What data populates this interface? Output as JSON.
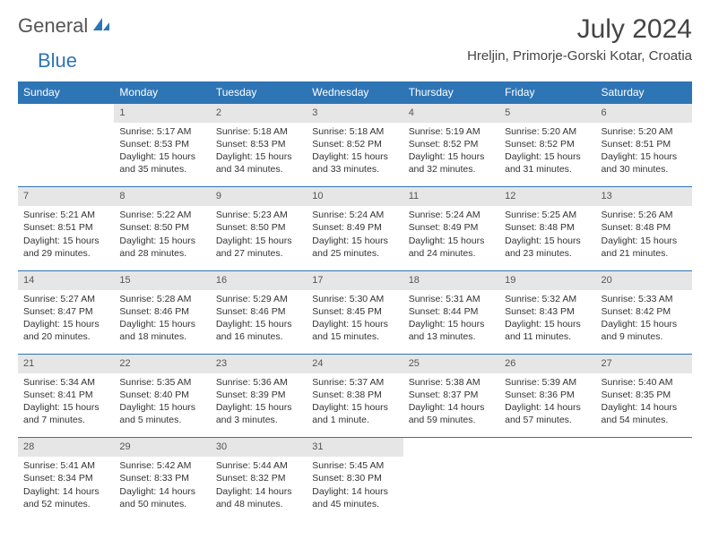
{
  "header": {
    "logo_general": "General",
    "logo_blue": "Blue",
    "month_title": "July 2024",
    "location": "Hreljin, Primorje-Gorski Kotar, Croatia"
  },
  "colors": {
    "header_bg": "#2e75b6",
    "header_text": "#ffffff",
    "daynum_bg": "#e6e6e6",
    "row_border": "#2e75b6",
    "body_text": "#333333",
    "logo_gray": "#555555",
    "logo_blue": "#2e75b6"
  },
  "weekdays": [
    "Sunday",
    "Monday",
    "Tuesday",
    "Wednesday",
    "Thursday",
    "Friday",
    "Saturday"
  ],
  "weeks": [
    {
      "nums": [
        "",
        "1",
        "2",
        "3",
        "4",
        "5",
        "6"
      ],
      "cells": [
        [],
        [
          "Sunrise: 5:17 AM",
          "Sunset: 8:53 PM",
          "Daylight: 15 hours",
          "and 35 minutes."
        ],
        [
          "Sunrise: 5:18 AM",
          "Sunset: 8:53 PM",
          "Daylight: 15 hours",
          "and 34 minutes."
        ],
        [
          "Sunrise: 5:18 AM",
          "Sunset: 8:52 PM",
          "Daylight: 15 hours",
          "and 33 minutes."
        ],
        [
          "Sunrise: 5:19 AM",
          "Sunset: 8:52 PM",
          "Daylight: 15 hours",
          "and 32 minutes."
        ],
        [
          "Sunrise: 5:20 AM",
          "Sunset: 8:52 PM",
          "Daylight: 15 hours",
          "and 31 minutes."
        ],
        [
          "Sunrise: 5:20 AM",
          "Sunset: 8:51 PM",
          "Daylight: 15 hours",
          "and 30 minutes."
        ]
      ]
    },
    {
      "nums": [
        "7",
        "8",
        "9",
        "10",
        "11",
        "12",
        "13"
      ],
      "cells": [
        [
          "Sunrise: 5:21 AM",
          "Sunset: 8:51 PM",
          "Daylight: 15 hours",
          "and 29 minutes."
        ],
        [
          "Sunrise: 5:22 AM",
          "Sunset: 8:50 PM",
          "Daylight: 15 hours",
          "and 28 minutes."
        ],
        [
          "Sunrise: 5:23 AM",
          "Sunset: 8:50 PM",
          "Daylight: 15 hours",
          "and 27 minutes."
        ],
        [
          "Sunrise: 5:24 AM",
          "Sunset: 8:49 PM",
          "Daylight: 15 hours",
          "and 25 minutes."
        ],
        [
          "Sunrise: 5:24 AM",
          "Sunset: 8:49 PM",
          "Daylight: 15 hours",
          "and 24 minutes."
        ],
        [
          "Sunrise: 5:25 AM",
          "Sunset: 8:48 PM",
          "Daylight: 15 hours",
          "and 23 minutes."
        ],
        [
          "Sunrise: 5:26 AM",
          "Sunset: 8:48 PM",
          "Daylight: 15 hours",
          "and 21 minutes."
        ]
      ]
    },
    {
      "nums": [
        "14",
        "15",
        "16",
        "17",
        "18",
        "19",
        "20"
      ],
      "cells": [
        [
          "Sunrise: 5:27 AM",
          "Sunset: 8:47 PM",
          "Daylight: 15 hours",
          "and 20 minutes."
        ],
        [
          "Sunrise: 5:28 AM",
          "Sunset: 8:46 PM",
          "Daylight: 15 hours",
          "and 18 minutes."
        ],
        [
          "Sunrise: 5:29 AM",
          "Sunset: 8:46 PM",
          "Daylight: 15 hours",
          "and 16 minutes."
        ],
        [
          "Sunrise: 5:30 AM",
          "Sunset: 8:45 PM",
          "Daylight: 15 hours",
          "and 15 minutes."
        ],
        [
          "Sunrise: 5:31 AM",
          "Sunset: 8:44 PM",
          "Daylight: 15 hours",
          "and 13 minutes."
        ],
        [
          "Sunrise: 5:32 AM",
          "Sunset: 8:43 PM",
          "Daylight: 15 hours",
          "and 11 minutes."
        ],
        [
          "Sunrise: 5:33 AM",
          "Sunset: 8:42 PM",
          "Daylight: 15 hours",
          "and 9 minutes."
        ]
      ]
    },
    {
      "nums": [
        "21",
        "22",
        "23",
        "24",
        "25",
        "26",
        "27"
      ],
      "cells": [
        [
          "Sunrise: 5:34 AM",
          "Sunset: 8:41 PM",
          "Daylight: 15 hours",
          "and 7 minutes."
        ],
        [
          "Sunrise: 5:35 AM",
          "Sunset: 8:40 PM",
          "Daylight: 15 hours",
          "and 5 minutes."
        ],
        [
          "Sunrise: 5:36 AM",
          "Sunset: 8:39 PM",
          "Daylight: 15 hours",
          "and 3 minutes."
        ],
        [
          "Sunrise: 5:37 AM",
          "Sunset: 8:38 PM",
          "Daylight: 15 hours",
          "and 1 minute."
        ],
        [
          "Sunrise: 5:38 AM",
          "Sunset: 8:37 PM",
          "Daylight: 14 hours",
          "and 59 minutes."
        ],
        [
          "Sunrise: 5:39 AM",
          "Sunset: 8:36 PM",
          "Daylight: 14 hours",
          "and 57 minutes."
        ],
        [
          "Sunrise: 5:40 AM",
          "Sunset: 8:35 PM",
          "Daylight: 14 hours",
          "and 54 minutes."
        ]
      ]
    },
    {
      "nums": [
        "28",
        "29",
        "30",
        "31",
        "",
        "",
        ""
      ],
      "cells": [
        [
          "Sunrise: 5:41 AM",
          "Sunset: 8:34 PM",
          "Daylight: 14 hours",
          "and 52 minutes."
        ],
        [
          "Sunrise: 5:42 AM",
          "Sunset: 8:33 PM",
          "Daylight: 14 hours",
          "and 50 minutes."
        ],
        [
          "Sunrise: 5:44 AM",
          "Sunset: 8:32 PM",
          "Daylight: 14 hours",
          "and 48 minutes."
        ],
        [
          "Sunrise: 5:45 AM",
          "Sunset: 8:30 PM",
          "Daylight: 14 hours",
          "and 45 minutes."
        ],
        [],
        [],
        []
      ]
    }
  ]
}
